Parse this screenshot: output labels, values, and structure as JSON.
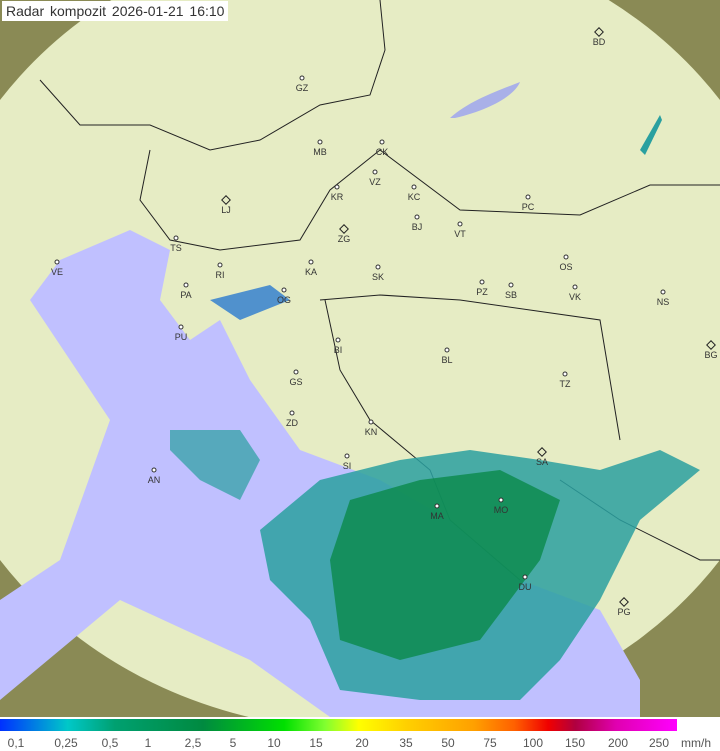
{
  "title": "Radar kompozit  2026-01-21   16:10",
  "colors": {
    "sea": "#c0c0ff",
    "coverage": "#e6ecc4",
    "outside": "#8a8a55",
    "rain_low": "#2aa0a0",
    "rain_mid": "#0a8a4a"
  },
  "cities": [
    "BD",
    "GZ",
    "MB",
    "CK",
    "LJ",
    "KR",
    "VZ",
    "KC",
    "PC",
    "BJ",
    "ZG",
    "VT",
    "TS",
    "VE",
    "RI",
    "KA",
    "SK",
    "OS",
    "PA",
    "OG",
    "PZ",
    "SB",
    "VK",
    "NS",
    "PU",
    "BI",
    "BL",
    "BG",
    "GS",
    "TZ",
    "ZD",
    "KN",
    "SA",
    "SI",
    "AN",
    "MA",
    "MO",
    "DU",
    "PG"
  ],
  "legend": {
    "ticks": [
      "0,1",
      "0,25",
      "0,5",
      "1",
      "2,5",
      "5",
      "10",
      "15",
      "20",
      "35",
      "50",
      "75",
      "100",
      "150",
      "200",
      "250"
    ],
    "unit": "mm/h"
  }
}
